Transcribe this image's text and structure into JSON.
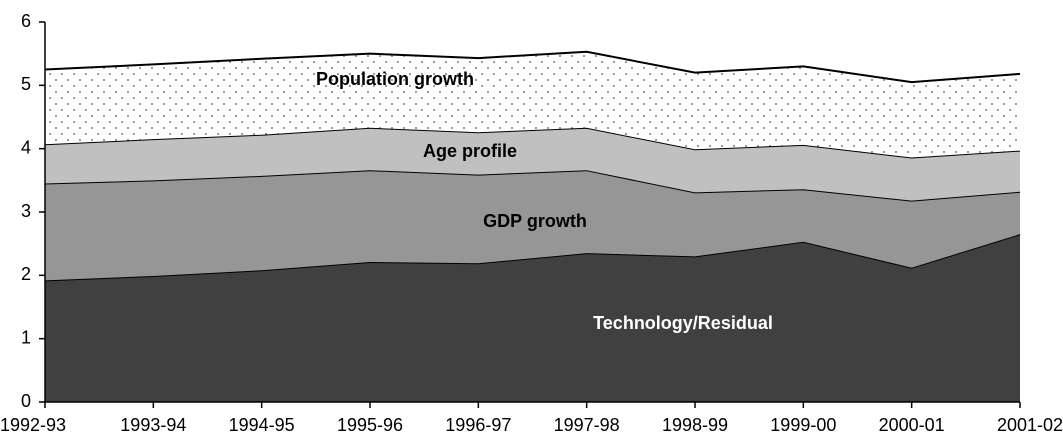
{
  "chart_data": {
    "type": "stacked-area",
    "categories": [
      "1992-93",
      "1993-94",
      "1994-95",
      "1995-96",
      "1996-97",
      "1997-98",
      "1998-99",
      "1999-00",
      "2000-01",
      "2001-02"
    ],
    "series": [
      {
        "name": "Technology/Residual",
        "color": "#404040",
        "label_color": "#ffffff",
        "values": [
          1.92,
          1.99,
          2.08,
          2.21,
          2.19,
          2.35,
          2.3,
          2.53,
          2.12,
          2.65
        ]
      },
      {
        "name": "GDP growth",
        "color": "#969696",
        "label_color": "#000000",
        "values": [
          1.53,
          1.51,
          1.49,
          1.45,
          1.4,
          1.31,
          1.01,
          0.83,
          1.06,
          0.67
        ]
      },
      {
        "name": "Age profile",
        "color": "#c0c0c0",
        "label_color": "#000000",
        "values": [
          0.62,
          0.65,
          0.65,
          0.67,
          0.67,
          0.67,
          0.68,
          0.7,
          0.68,
          0.65
        ]
      },
      {
        "name": "Population growth",
        "color": "#ffffff",
        "pattern": "dots",
        "label_color": "#000000",
        "values": [
          1.18,
          1.18,
          1.2,
          1.17,
          1.17,
          1.2,
          1.21,
          1.24,
          1.19,
          1.21
        ]
      }
    ],
    "ylim": [
      0,
      6
    ],
    "yticks": [
      0,
      1,
      2,
      3,
      4,
      5,
      6
    ],
    "grid": false
  }
}
